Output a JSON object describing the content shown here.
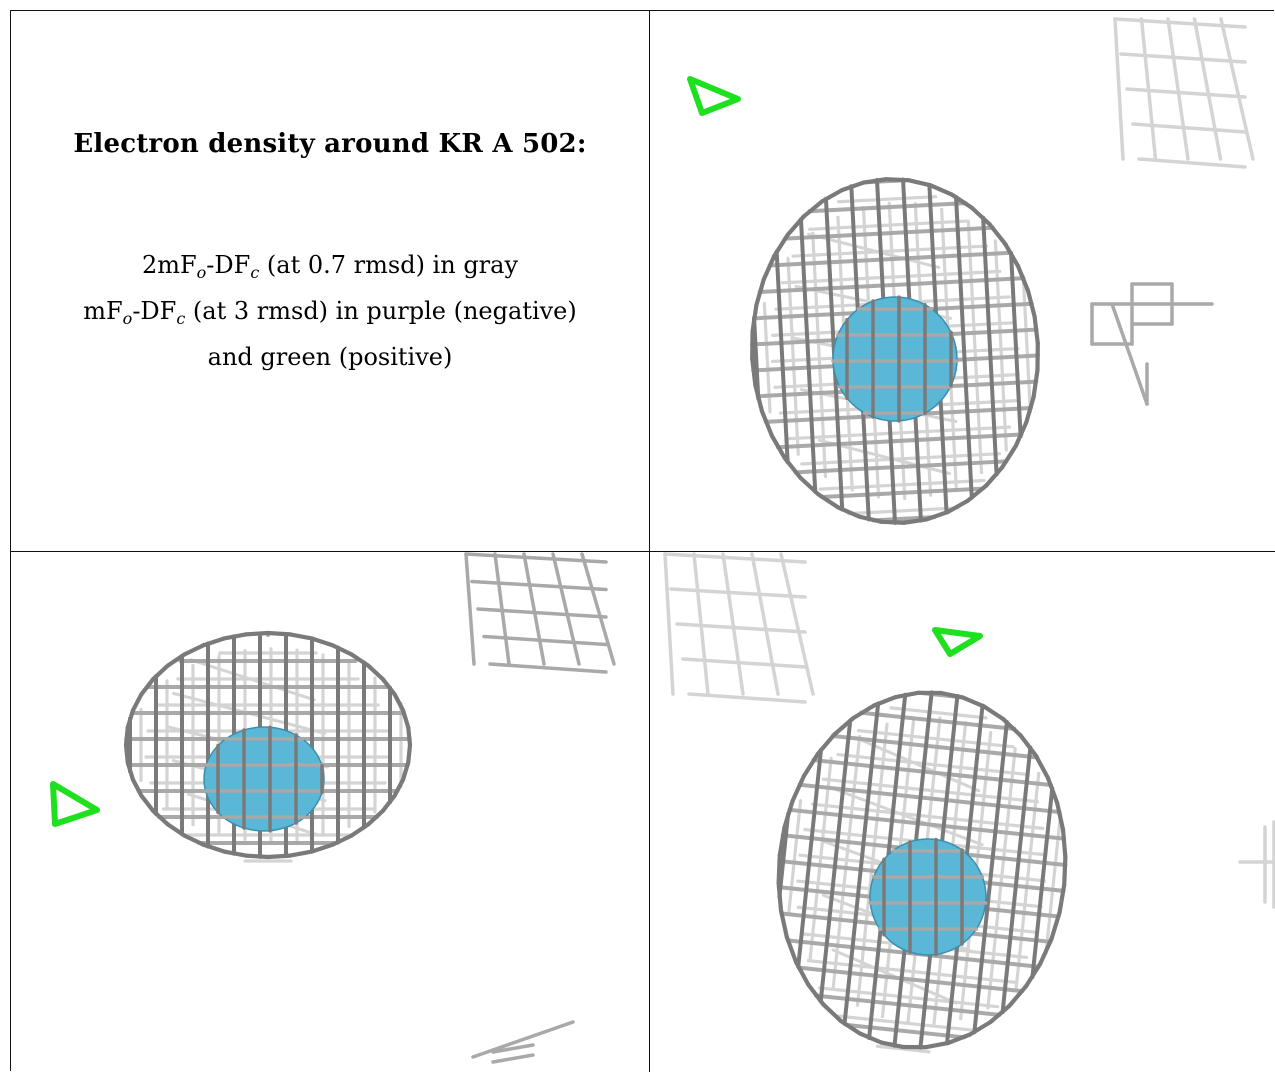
{
  "legend": {
    "title": "Electron density around KR A 502:",
    "line1": {
      "pre": "2mF",
      "sub1": "o",
      "mid": "-DF",
      "sub2": "c",
      "post": " (at 0.7 rmsd) in gray"
    },
    "line2": {
      "pre": "mF",
      "sub1": "o",
      "mid": "-DF",
      "sub2": "c",
      "post": " (at 3 rmsd) in purple (negative)"
    },
    "line3": "and green (positive)"
  },
  "colors": {
    "mesh": "#a9a9a9",
    "mesh_dark": "#7a7a7a",
    "mesh_faint": "#d4d4d4",
    "atom": "#5bb7d6",
    "positive_density": "#1ee01e"
  }
}
